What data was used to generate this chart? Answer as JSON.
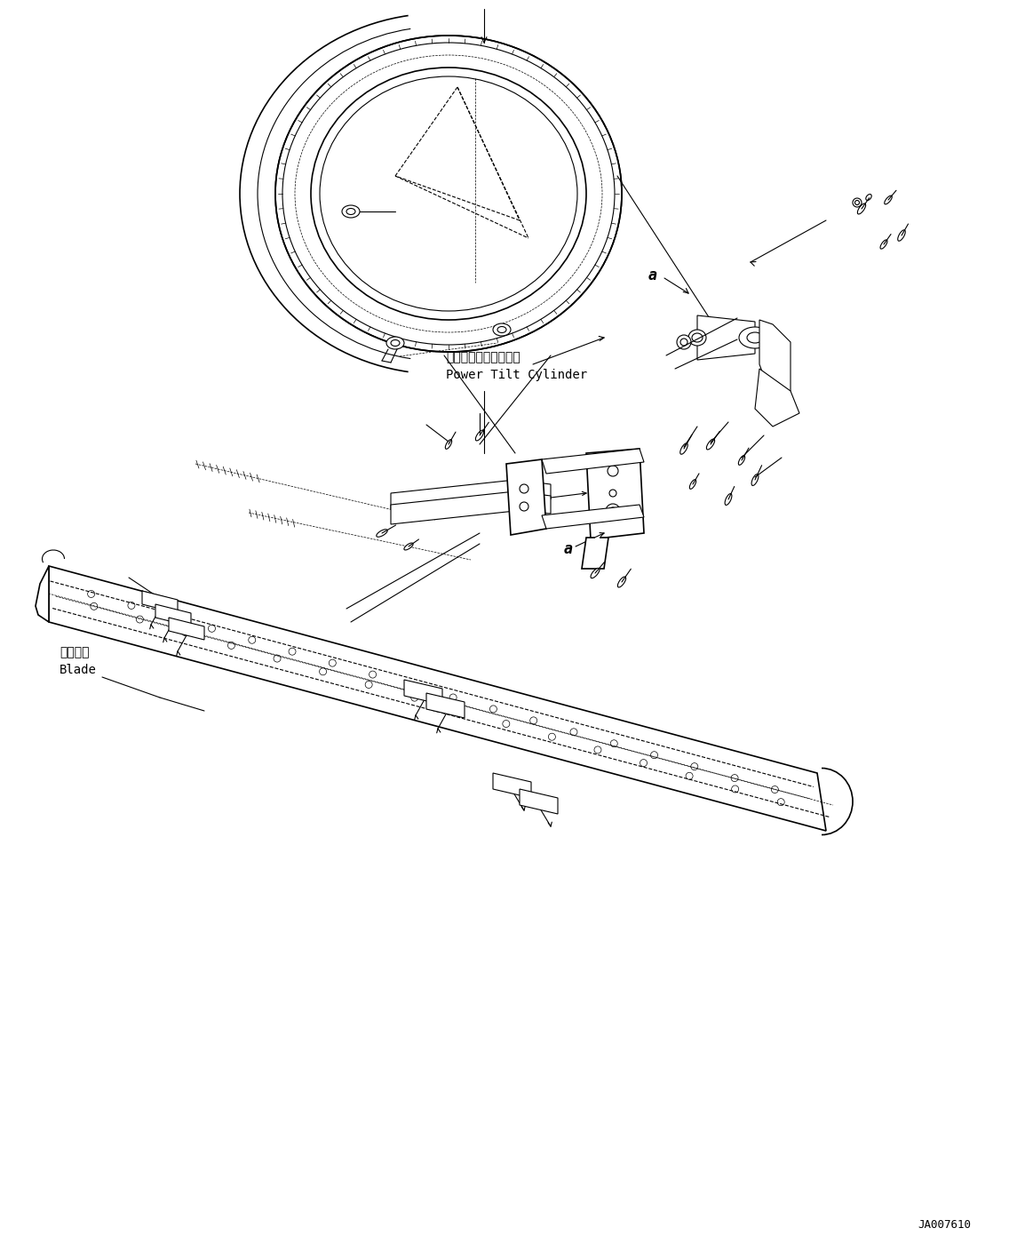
{
  "bg_color": "#ffffff",
  "line_color": "#000000",
  "fig_width": 11.63,
  "fig_height": 14.09,
  "dpi": 100,
  "label_power_tilt_jp": "パワーチルトシリンダ",
  "label_power_tilt_en": "Power Tilt Cylinder",
  "label_blade_jp": "ブレード",
  "label_blade_en": "Blade",
  "label_a1": "a",
  "label_a2": "a",
  "part_number": "JA007610",
  "font_monospace": "monospace",
  "font_sans": "DejaVu Sans"
}
